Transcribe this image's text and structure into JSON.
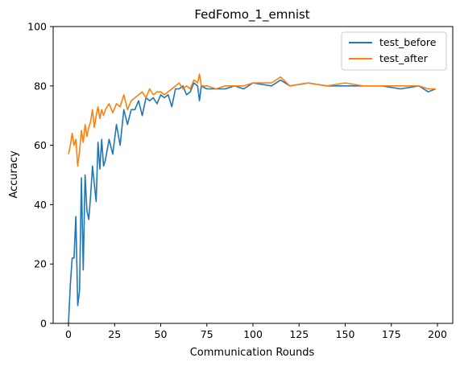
{
  "chart_data": {
    "type": "line",
    "title": "FedFomo_1_emnist",
    "xlabel": "Communication Rounds",
    "ylabel": "Accuracy",
    "xlim": [
      -8.3,
      208.3
    ],
    "ylim": [
      0,
      100
    ],
    "xticks": [
      0,
      25,
      50,
      75,
      100,
      125,
      150,
      175,
      200
    ],
    "yticks": [
      0,
      20,
      40,
      60,
      80,
      100
    ],
    "legend": "top-right",
    "grid": false,
    "series": [
      {
        "name": "test_before",
        "color": "#1f77b4",
        "x": [
          0,
          1,
          2,
          3,
          4,
          5,
          6,
          7,
          8,
          9,
          10,
          11,
          12,
          13,
          14,
          15,
          16,
          17,
          18,
          19,
          20,
          22,
          24,
          26,
          28,
          30,
          32,
          34,
          36,
          38,
          40,
          42,
          44,
          46,
          48,
          50,
          52,
          54,
          56,
          58,
          60,
          62,
          64,
          66,
          68,
          70,
          71,
          72,
          75,
          80,
          85,
          90,
          95,
          100,
          110,
          115,
          120,
          130,
          140,
          150,
          160,
          170,
          180,
          190,
          195,
          199
        ],
        "y": [
          0,
          13,
          22,
          22,
          36,
          6,
          11,
          49,
          18,
          50,
          38,
          35,
          43,
          53,
          47,
          41,
          61,
          52,
          62,
          53,
          55,
          62,
          57,
          67,
          60,
          72,
          67,
          72,
          72,
          75,
          70,
          76,
          75,
          76,
          74,
          77,
          76,
          77,
          73,
          79,
          79,
          80,
          77,
          78,
          81,
          80,
          75,
          80,
          79,
          79,
          79,
          80,
          79,
          81,
          80,
          82,
          80,
          81,
          80,
          80,
          80,
          80,
          79,
          80,
          78,
          79
        ]
      },
      {
        "name": "test_after",
        "color": "#ff7f0e",
        "x": [
          0,
          1,
          2,
          3,
          4,
          5,
          6,
          7,
          8,
          9,
          10,
          11,
          12,
          13,
          14,
          15,
          16,
          17,
          18,
          19,
          20,
          22,
          24,
          26,
          28,
          30,
          32,
          34,
          36,
          38,
          40,
          42,
          44,
          46,
          48,
          50,
          52,
          54,
          56,
          58,
          60,
          62,
          64,
          66,
          68,
          70,
          71,
          72,
          75,
          80,
          85,
          90,
          95,
          100,
          110,
          115,
          120,
          130,
          140,
          150,
          160,
          170,
          180,
          190,
          195,
          199
        ],
        "y": [
          57,
          60,
          64,
          60,
          62,
          53,
          58,
          65,
          61,
          67,
          63,
          66,
          68,
          72,
          66,
          70,
          73,
          69,
          72,
          70,
          72,
          74,
          71,
          74,
          73,
          77,
          72,
          75,
          76,
          77,
          78,
          76,
          79,
          77,
          78,
          78,
          77,
          78,
          79,
          80,
          81,
          79,
          80,
          79,
          82,
          81,
          84,
          80,
          80,
          79,
          80,
          80,
          80,
          81,
          81,
          83,
          80,
          81,
          80,
          81,
          80,
          80,
          80,
          80,
          79,
          79
        ]
      }
    ]
  }
}
